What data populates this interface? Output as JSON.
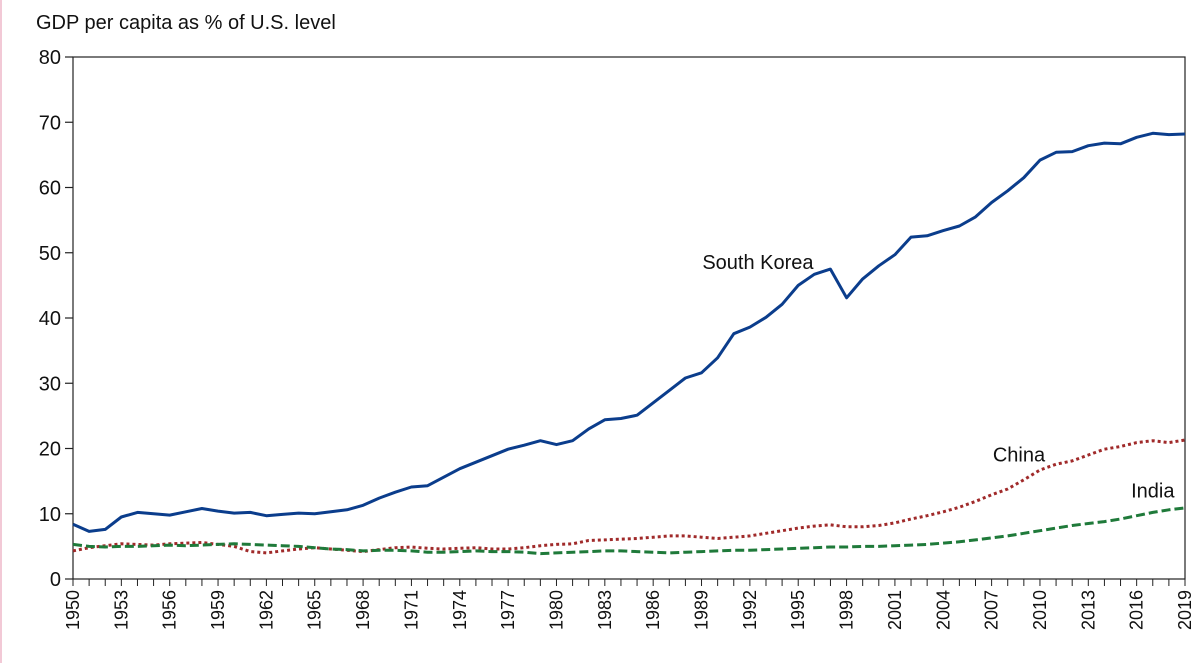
{
  "chart_data": {
    "type": "line",
    "title": "GDP per capita as % of U.S. level",
    "xlabel": "",
    "ylabel": "",
    "xlim": [
      1950,
      2019
    ],
    "ylim": [
      0,
      80
    ],
    "yticks": [
      0,
      10,
      20,
      30,
      40,
      50,
      60,
      70,
      80
    ],
    "xticks": [
      1950,
      1953,
      1956,
      1959,
      1962,
      1965,
      1968,
      1971,
      1974,
      1977,
      1980,
      1983,
      1986,
      1989,
      1992,
      1995,
      1998,
      2001,
      2004,
      2007,
      2010,
      2013,
      2016,
      2019
    ],
    "x": [
      1950,
      1951,
      1952,
      1953,
      1954,
      1955,
      1956,
      1957,
      1958,
      1959,
      1960,
      1961,
      1962,
      1963,
      1964,
      1965,
      1966,
      1967,
      1968,
      1969,
      1970,
      1971,
      1972,
      1973,
      1974,
      1975,
      1976,
      1977,
      1978,
      1979,
      1980,
      1981,
      1982,
      1983,
      1984,
      1985,
      1986,
      1987,
      1988,
      1989,
      1990,
      1991,
      1992,
      1993,
      1994,
      1995,
      1996,
      1997,
      1998,
      1999,
      2000,
      2001,
      2002,
      2003,
      2004,
      2005,
      2006,
      2007,
      2008,
      2009,
      2010,
      2011,
      2012,
      2013,
      2014,
      2015,
      2016,
      2017,
      2018,
      2019
    ],
    "grid": false,
    "legend": "none",
    "series": [
      {
        "name": "South Korea",
        "color": "#0b3d8c",
        "dash": "solid",
        "values": [
          8.4,
          7.3,
          7.6,
          9.5,
          10.2,
          10.0,
          9.8,
          10.3,
          10.8,
          10.4,
          10.1,
          10.2,
          9.7,
          9.9,
          10.1,
          10.0,
          10.3,
          10.6,
          11.3,
          12.4,
          13.3,
          14.1,
          14.3,
          15.6,
          16.9,
          17.9,
          18.9,
          19.9,
          20.5,
          21.2,
          20.6,
          21.2,
          23.0,
          24.4,
          24.6,
          25.1,
          27.0,
          28.9,
          30.8,
          31.6,
          33.9,
          37.6,
          38.6,
          40.1,
          42.1,
          45.0,
          46.7,
          47.5,
          43.1,
          46.0,
          48.0,
          49.7,
          52.4,
          52.6,
          53.4,
          54.1,
          55.5,
          57.7,
          59.5,
          61.5,
          64.2,
          65.4,
          65.5,
          66.4,
          66.8,
          66.7,
          67.7,
          68.3,
          68.1,
          68.2
        ]
      },
      {
        "name": "China",
        "color": "#a02a2a",
        "dash": "dotted",
        "values": [
          4.3,
          4.8,
          5.1,
          5.4,
          5.3,
          5.2,
          5.4,
          5.5,
          5.6,
          5.3,
          5.0,
          4.2,
          4.0,
          4.3,
          4.6,
          4.8,
          4.6,
          4.4,
          4.2,
          4.5,
          4.8,
          4.9,
          4.7,
          4.6,
          4.7,
          4.8,
          4.6,
          4.6,
          4.8,
          5.1,
          5.3,
          5.4,
          5.9,
          6.0,
          6.1,
          6.2,
          6.4,
          6.6,
          6.6,
          6.4,
          6.2,
          6.4,
          6.6,
          7.0,
          7.4,
          7.8,
          8.1,
          8.3,
          8.0,
          8.0,
          8.2,
          8.6,
          9.2,
          9.7,
          10.3,
          11.0,
          11.9,
          12.9,
          13.8,
          15.2,
          16.7,
          17.6,
          18.1,
          19.0,
          19.9,
          20.3,
          20.9,
          21.2,
          20.9,
          21.3
        ]
      },
      {
        "name": "India",
        "color": "#1f7a3a",
        "dash": "dashed",
        "values": [
          5.3,
          5.0,
          4.9,
          5.0,
          5.0,
          5.1,
          5.2,
          5.1,
          5.2,
          5.3,
          5.4,
          5.3,
          5.2,
          5.1,
          5.0,
          4.8,
          4.6,
          4.5,
          4.3,
          4.4,
          4.4,
          4.3,
          4.1,
          4.1,
          4.2,
          4.3,
          4.2,
          4.2,
          4.1,
          3.9,
          4.0,
          4.1,
          4.2,
          4.3,
          4.3,
          4.2,
          4.1,
          4.0,
          4.1,
          4.2,
          4.3,
          4.4,
          4.4,
          4.5,
          4.6,
          4.7,
          4.8,
          4.9,
          4.9,
          5.0,
          5.0,
          5.1,
          5.2,
          5.3,
          5.5,
          5.7,
          6.0,
          6.3,
          6.6,
          7.0,
          7.4,
          7.8,
          8.2,
          8.5,
          8.8,
          9.2,
          9.7,
          10.2,
          10.6,
          10.9
        ]
      }
    ],
    "annotations": [
      {
        "text": "South Korea",
        "x": 1992.5,
        "y": 47.5
      },
      {
        "text": "China",
        "x": 2008.7,
        "y": 18.0
      },
      {
        "text": "India",
        "x": 2017.0,
        "y": 12.5
      }
    ]
  }
}
